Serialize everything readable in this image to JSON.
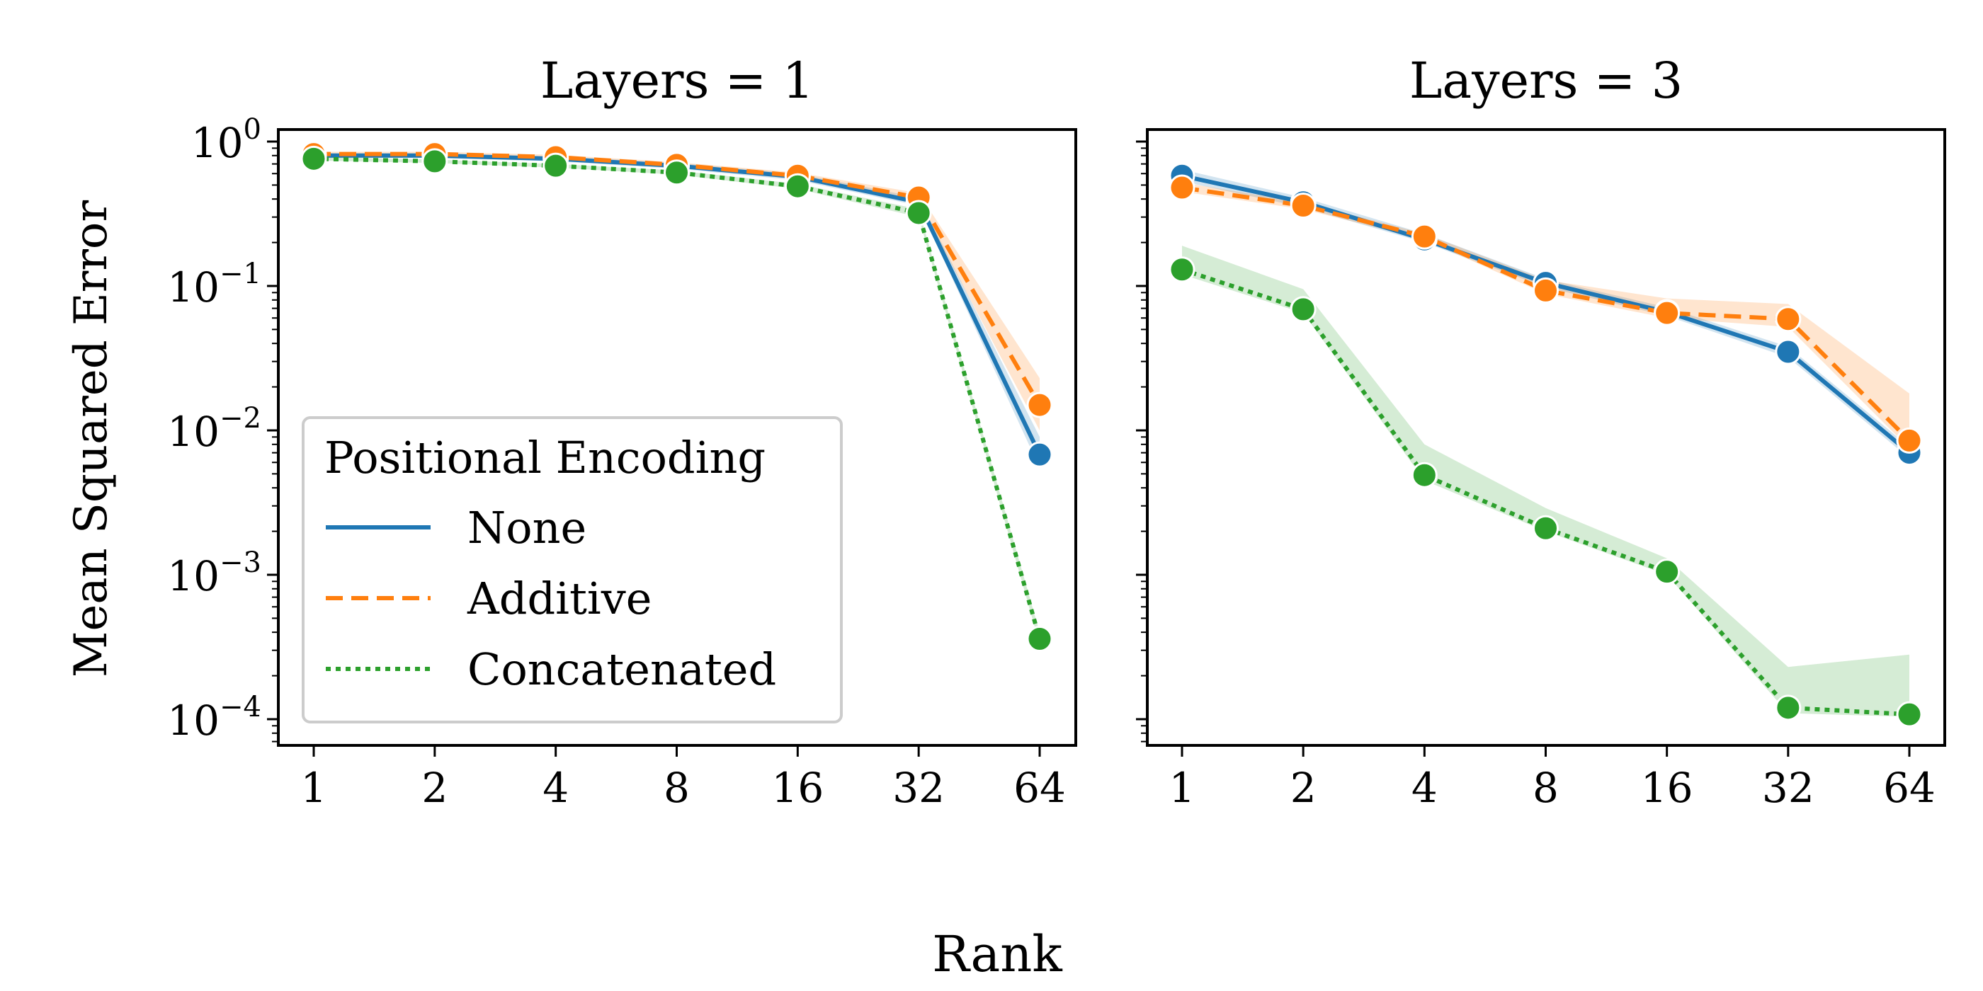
{
  "figure": {
    "xlabel": "Rank",
    "ylabel": "Mean Squared Error"
  },
  "legend": {
    "title": "Positional Encoding",
    "placement": "lower-left of first panel"
  },
  "colors": {
    "None": "#1f77b4",
    "Additive": "#ff7f0e",
    "Concatenated": "#2ca02c"
  },
  "chart_data": [
    {
      "type": "line",
      "title": "Layers = 1",
      "xlabel": "Rank",
      "ylabel": "Mean Squared Error",
      "y_scale": "log",
      "ylim": [
        7e-05,
        1.25
      ],
      "yticks": [
        {
          "base": "10",
          "exp": "0",
          "value": 1
        },
        {
          "base": "10",
          "exp": "−1",
          "value": 0.1
        },
        {
          "base": "10",
          "exp": "−2",
          "value": 0.01
        },
        {
          "base": "10",
          "exp": "−3",
          "value": 0.001
        },
        {
          "base": "10",
          "exp": "−4",
          "value": 0.0001
        }
      ],
      "categories": [
        "1",
        "2",
        "4",
        "8",
        "16",
        "32",
        "64"
      ],
      "legend": true,
      "series": [
        {
          "name": "None",
          "style": "solid",
          "values": [
            0.8,
            0.8,
            0.76,
            0.68,
            0.57,
            0.38,
            0.0068
          ],
          "band_low": [
            0.77,
            0.77,
            0.73,
            0.65,
            0.54,
            0.36,
            0.0055
          ],
          "band_high": [
            0.83,
            0.83,
            0.79,
            0.71,
            0.6,
            0.41,
            0.009
          ]
        },
        {
          "name": "Additive",
          "style": "dashed",
          "values": [
            0.82,
            0.82,
            0.78,
            0.69,
            0.58,
            0.41,
            0.015
          ],
          "band_low": [
            0.79,
            0.79,
            0.75,
            0.66,
            0.55,
            0.38,
            0.01
          ],
          "band_high": [
            0.85,
            0.85,
            0.81,
            0.72,
            0.61,
            0.44,
            0.023
          ]
        },
        {
          "name": "Concatenated",
          "style": "dotted",
          "values": [
            0.76,
            0.73,
            0.68,
            0.61,
            0.49,
            0.32,
            0.00036
          ],
          "band_low": [
            0.74,
            0.71,
            0.66,
            0.59,
            0.47,
            0.3,
            0.00033
          ],
          "band_high": [
            0.78,
            0.75,
            0.7,
            0.63,
            0.51,
            0.34,
            0.0004
          ]
        }
      ]
    },
    {
      "type": "line",
      "title": "Layers = 3",
      "xlabel": "Rank",
      "y_scale": "log",
      "ylim": [
        7e-05,
        1.25
      ],
      "categories": [
        "1",
        "2",
        "4",
        "8",
        "16",
        "32",
        "64"
      ],
      "legend": false,
      "series": [
        {
          "name": "None",
          "style": "solid",
          "values": [
            0.58,
            0.38,
            0.21,
            0.105,
            0.066,
            0.035,
            0.007
          ],
          "band_low": [
            0.53,
            0.35,
            0.2,
            0.098,
            0.062,
            0.032,
            0.0064
          ],
          "band_high": [
            0.64,
            0.41,
            0.23,
            0.112,
            0.071,
            0.038,
            0.0077
          ]
        },
        {
          "name": "Additive",
          "style": "dashed",
          "values": [
            0.48,
            0.36,
            0.22,
            0.093,
            0.065,
            0.059,
            0.0085
          ],
          "band_low": [
            0.45,
            0.34,
            0.21,
            0.088,
            0.06,
            0.052,
            0.0075
          ],
          "band_high": [
            0.52,
            0.38,
            0.23,
            0.11,
            0.082,
            0.075,
            0.018
          ]
        },
        {
          "name": "Concatenated",
          "style": "dotted",
          "values": [
            0.13,
            0.069,
            0.0049,
            0.0021,
            0.00105,
            0.00012,
            0.000108
          ],
          "band_low": [
            0.12,
            0.065,
            0.0045,
            0.002,
            0.001,
            0.00011,
            0.000104
          ],
          "band_high": [
            0.19,
            0.095,
            0.008,
            0.0029,
            0.0013,
            0.00023,
            0.00028
          ]
        }
      ]
    }
  ]
}
